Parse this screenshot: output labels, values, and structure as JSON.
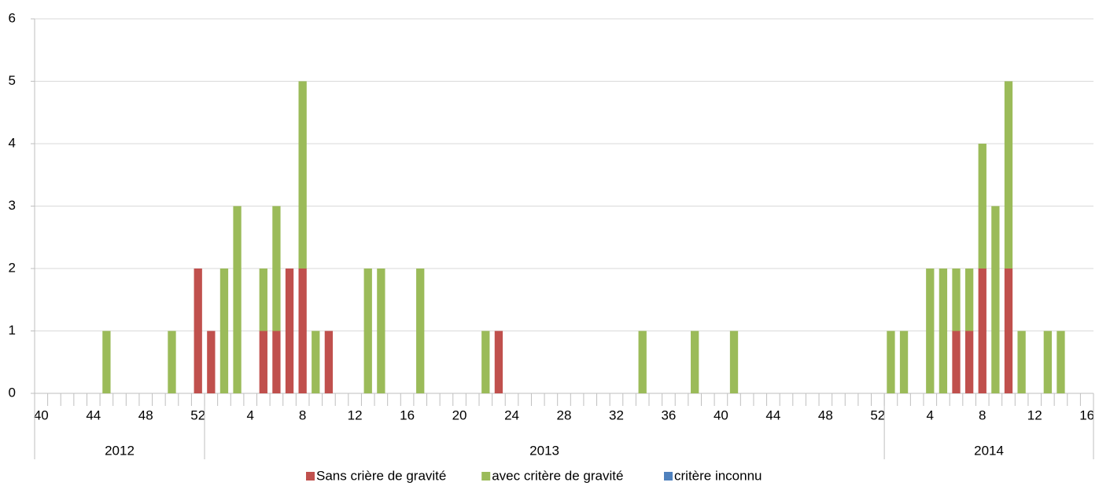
{
  "chart_data": {
    "type": "stacked_bar",
    "groups": [
      {
        "name": "2012",
        "categories": [
          "40",
          null,
          null,
          null,
          "44",
          null,
          null,
          null,
          "48",
          null,
          null,
          null,
          "52"
        ]
      },
      {
        "name": "2013",
        "categories": [
          null,
          null,
          null,
          "4",
          null,
          null,
          null,
          "8",
          null,
          null,
          null,
          "12",
          null,
          null,
          null,
          "16",
          null,
          null,
          null,
          "20",
          null,
          null,
          null,
          "24",
          null,
          null,
          null,
          "28",
          null,
          null,
          null,
          "32",
          null,
          null,
          null,
          "36",
          null,
          null,
          null,
          "40",
          null,
          null,
          null,
          "44",
          null,
          null,
          null,
          "48",
          null,
          null,
          null,
          "52"
        ]
      },
      {
        "name": "2014",
        "categories": [
          null,
          null,
          null,
          "4",
          null,
          null,
          null,
          "8",
          null,
          null,
          null,
          "12",
          null,
          null,
          null,
          "16"
        ]
      }
    ],
    "series": [
      {
        "name": "Sans crière de gravité",
        "color": "#c0504d",
        "values": [
          0,
          0,
          0,
          0,
          0,
          0,
          0,
          0,
          0,
          0,
          0,
          0,
          2,
          1,
          0,
          0,
          0,
          1,
          1,
          2,
          2,
          0,
          1,
          0,
          0,
          0,
          0,
          0,
          0,
          0,
          0,
          0,
          0,
          0,
          0,
          1,
          0,
          0,
          0,
          0,
          0,
          0,
          0,
          0,
          0,
          0,
          0,
          0,
          0,
          0,
          0,
          0,
          0,
          0,
          0,
          0,
          0,
          0,
          0,
          0,
          0,
          0,
          0,
          0,
          0,
          0,
          0,
          0,
          0,
          0,
          1,
          1,
          2,
          0,
          2,
          0,
          0,
          0,
          0,
          0,
          0
        ]
      },
      {
        "name": "avec critère de gravité",
        "color": "#9bbb59",
        "values": [
          0,
          0,
          0,
          0,
          0,
          1,
          0,
          0,
          0,
          0,
          1,
          0,
          0,
          0,
          2,
          3,
          0,
          1,
          2,
          0,
          3,
          1,
          0,
          0,
          0,
          2,
          2,
          0,
          0,
          2,
          0,
          0,
          0,
          0,
          1,
          0,
          0,
          0,
          0,
          0,
          0,
          0,
          0,
          0,
          0,
          0,
          1,
          0,
          0,
          0,
          1,
          0,
          0,
          1,
          0,
          0,
          0,
          0,
          0,
          0,
          0,
          0,
          0,
          0,
          0,
          1,
          1,
          0,
          2,
          2,
          1,
          1,
          2,
          3,
          3,
          1,
          0,
          1,
          1,
          0,
          0
        ]
      },
      {
        "name": "critère inconnu",
        "color": "#4f81bd",
        "values": [
          0,
          0,
          0,
          0,
          0,
          0,
          0,
          0,
          0,
          0,
          0,
          0,
          0,
          0,
          0,
          0,
          0,
          0,
          0,
          0,
          0,
          0,
          0,
          0,
          0,
          0,
          0,
          0,
          0,
          0,
          0,
          0,
          0,
          0,
          0,
          0,
          0,
          0,
          0,
          0,
          0,
          0,
          0,
          0,
          0,
          0,
          0,
          0,
          0,
          0,
          0,
          0,
          0,
          0,
          0,
          0,
          0,
          0,
          0,
          0,
          0,
          0,
          0,
          0,
          0,
          0,
          0,
          0,
          0,
          0,
          0,
          0,
          0,
          0,
          0,
          0,
          0,
          0,
          0,
          0,
          0
        ]
      }
    ],
    "ylim": [
      0,
      6
    ],
    "yticks": [
      0,
      1,
      2,
      3,
      4,
      5,
      6
    ],
    "grid": true,
    "legend": "bottom"
  }
}
